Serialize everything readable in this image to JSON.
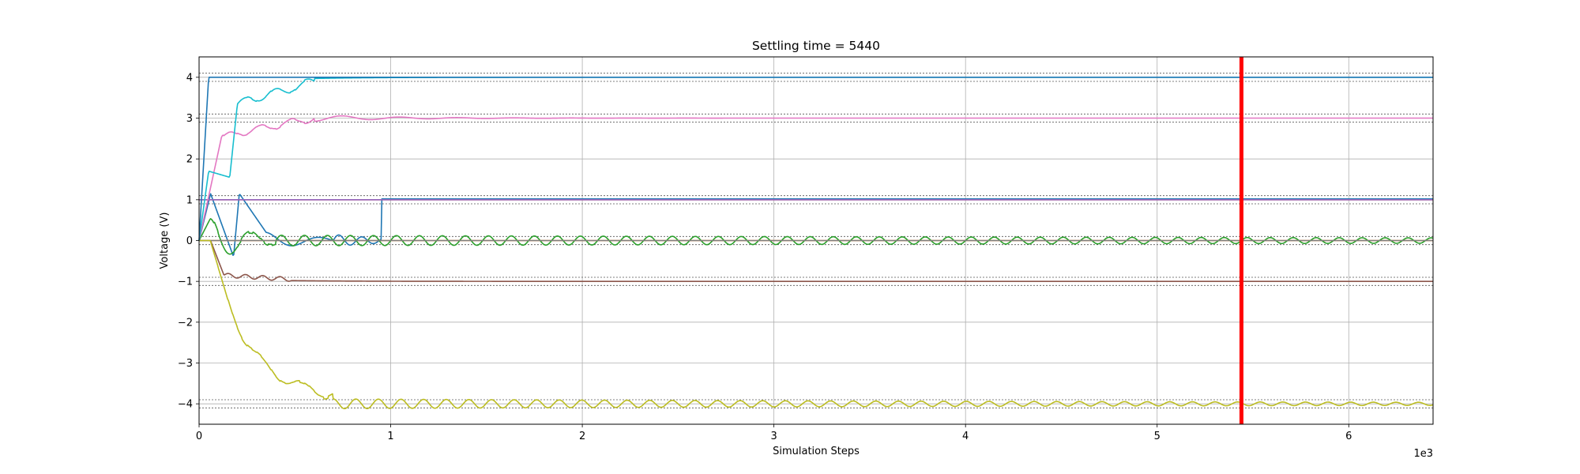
{
  "chart_data": {
    "type": "line",
    "title": "Settling time = 5440",
    "xlabel": "Simulation Steps",
    "ylabel": "Voltage (V)",
    "x_offset_label": "1e3",
    "xlim": [
      0,
      6440
    ],
    "ylim": [
      -4.5,
      4.5
    ],
    "xticks": [
      0,
      1000,
      2000,
      3000,
      4000,
      5000,
      6000
    ],
    "xtick_labels": [
      "0",
      "1",
      "2",
      "3",
      "4",
      "5",
      "6"
    ],
    "yticks": [
      -4,
      -3,
      -2,
      -1,
      0,
      1,
      2,
      3,
      4
    ],
    "ytick_labels": [
      "−4",
      "−3",
      "−2",
      "−1",
      "0",
      "1",
      "2",
      "3",
      "4"
    ],
    "grid": true,
    "settling_time": 5440,
    "settling_line_color": "#ff0000",
    "tolerance_band": 0.1,
    "targets": [
      4,
      3,
      1,
      0,
      -1,
      -4
    ],
    "series": [
      {
        "color": "#1f77b4",
        "target": 1,
        "kind": "leader"
      },
      {
        "color": "#ff7f0e",
        "target": 0,
        "kind": "flat"
      },
      {
        "color": "#2ca02c",
        "target": 0,
        "kind": "osc",
        "amp": 0.13,
        "period": 120,
        "decay": 9000
      },
      {
        "color": "#d62728",
        "target": 1,
        "kind": "flat"
      },
      {
        "color": "#9467bd",
        "target": 1,
        "kind": "flat"
      },
      {
        "color": "#8c564b",
        "target": -1,
        "kind": "neg1"
      },
      {
        "color": "#e377c2",
        "target": 3,
        "kind": "pink"
      },
      {
        "color": "#7f7f7f",
        "target": 0,
        "kind": "flat"
      },
      {
        "color": "#bcbd22",
        "target": -4,
        "kind": "olive"
      },
      {
        "color": "#17becf",
        "target": 4,
        "kind": "cyan"
      },
      {
        "color": "#1f77b4",
        "target": 4,
        "kind": "step4"
      }
    ]
  }
}
